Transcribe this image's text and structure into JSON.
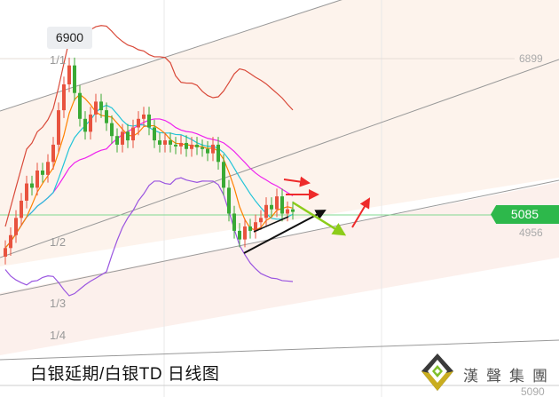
{
  "chart_data": {
    "type": "candlestick",
    "title": "白银延期/白银TD  日线图",
    "price_marks": {
      "high_tooltip": "6900",
      "top_line": "6899",
      "current": "5085",
      "lower_line": "4956",
      "bottom_line": "5090"
    },
    "fraction_labels": [
      "1/1",
      "1/2",
      "1/3",
      "1/4"
    ],
    "close": [
      4700,
      4850,
      5050,
      5250,
      5450,
      5400,
      5600,
      5550,
      5700,
      5900,
      6300,
      6600,
      6820,
      6500,
      6200,
      6050,
      6250,
      6400,
      6300,
      6150,
      6000,
      5900,
      6050,
      5950,
      6100,
      6200,
      6250,
      6100,
      5950,
      5900,
      5950,
      5900,
      5880,
      5920,
      5850,
      5900,
      5870,
      5850,
      5800,
      5900,
      5700,
      5400,
      5100,
      4900,
      4800,
      4950,
      4900,
      5000,
      5050,
      5200,
      5150,
      5300,
      5100,
      5150,
      5120
    ],
    "colors": {
      "up": "#e8533f",
      "down": "#3aaa35",
      "ma5": "#ff8000",
      "ma10": "#22c4d8",
      "ma20": "#ee22ee",
      "upper": "#d94a3a",
      "lower": "#9a55e0",
      "current": "#2db84b"
    }
  },
  "logo": {
    "text": "漢聲集團"
  }
}
